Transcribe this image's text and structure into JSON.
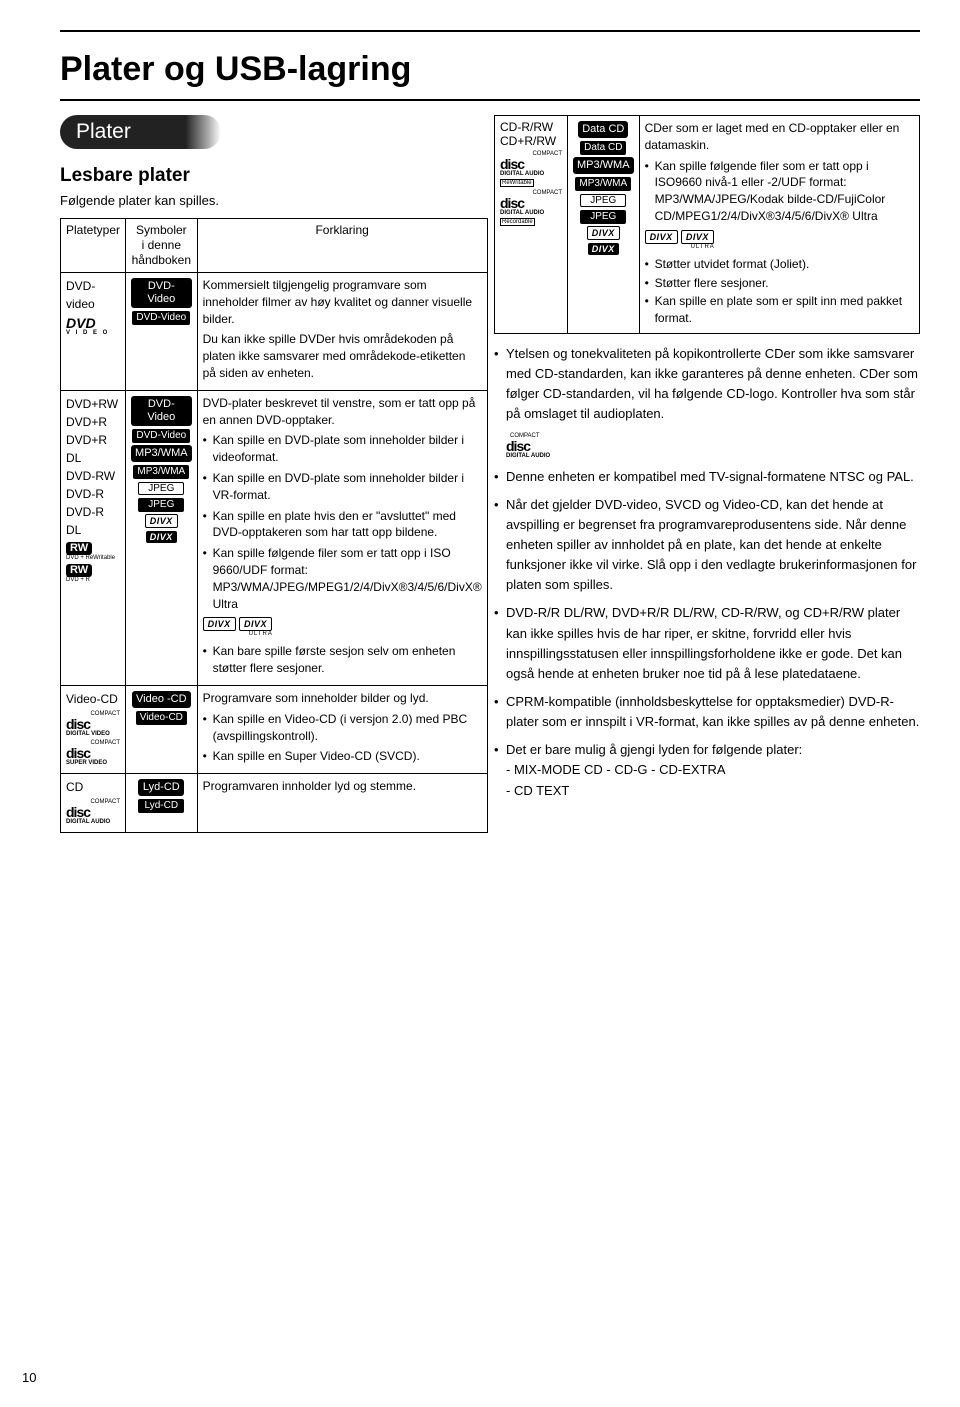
{
  "page": {
    "title": "Plater og USB-lagring",
    "section_pill": "Plater",
    "sub_heading": "Lesbare plater",
    "intro": "Følgende plater kan spilles.",
    "page_num": "10"
  },
  "left_table": {
    "headers": {
      "type": "Platetyper",
      "symbols": "Symboler\ni denne\nhåndboken",
      "desc": "Forklaring"
    },
    "rows": [
      {
        "type_lines": [
          "DVD-video"
        ],
        "type_logos": [
          "DVD-VIDEO-LOGO"
        ],
        "symbols": [
          {
            "style": "lg-pill",
            "text": "DVD-Video"
          },
          {
            "style": "pill",
            "text": "DVD-Video"
          }
        ],
        "desc_paras": [
          "Kommersielt tilgjengelig programvare som inneholder filmer av høy kvalitet og danner visuelle bilder.",
          "Du kan ikke spille DVDer hvis områdekoden på platen ikke samsvarer med områdekode-etiketten på siden av enheten."
        ],
        "desc_bullets": []
      },
      {
        "type_lines": [
          "DVD+RW",
          "DVD+R",
          "DVD+R DL",
          "DVD-RW",
          "DVD-R",
          "DVD-R DL"
        ],
        "type_logos": [
          "RW-REWRITABLE",
          "RW-R"
        ],
        "symbols": [
          {
            "style": "lg-pill",
            "text": "DVD-Video"
          },
          {
            "style": "pill",
            "text": "DVD-Video"
          },
          {
            "style": "lg-pill",
            "text": "MP3/WMA"
          },
          {
            "style": "pill",
            "text": "MP3/WMA"
          },
          {
            "style": "box",
            "text": "JPEG"
          },
          {
            "style": "pill",
            "text": "JPEG"
          },
          {
            "style": "divx-box",
            "text": "DIVX"
          },
          {
            "style": "divx-pill",
            "text": "DIVX"
          }
        ],
        "desc_paras": [
          "DVD-plater beskrevet til venstre, som er tatt opp på en annen DVD-opptaker."
        ],
        "desc_bullets": [
          "Kan spille en DVD-plate som inneholder bilder i videoformat.",
          "Kan spille en DVD-plate som inneholder bilder i VR-format.",
          "Kan spille en plate hvis den er \"avsluttet\" med DVD-opptakeren som har tatt opp bildene.",
          "Kan spille følgende filer som er tatt opp i ISO 9660/UDF format: MP3/WMA/JPEG/MPEG1/2/4/DivX®3/4/5/6/DivX® Ultra"
        ],
        "desc_trailing_bullets": [
          "Kan bare spille første sesjon selv om enheten støtter flere sesjoner."
        ],
        "show_divx_pair": true
      },
      {
        "type_lines": [
          "Video-CD"
        ],
        "type_logos": [
          "DISC-DIGITALVIDEO",
          "DISC-SUPERVIDEO"
        ],
        "symbols": [
          {
            "style": "lg-pill",
            "text": "Video -CD"
          },
          {
            "style": "pill",
            "text": "Video-CD"
          }
        ],
        "desc_paras": [
          "Programvare som inneholder bilder og lyd."
        ],
        "desc_bullets": [
          "Kan spille en Video-CD (i versjon 2.0) med PBC (avspillingskontroll).",
          "Kan spille en Super Video-CD (SVCD)."
        ]
      },
      {
        "type_lines": [
          "CD"
        ],
        "type_logos": [
          "DISC-DIGITALAUDIO"
        ],
        "symbols": [
          {
            "style": "lg-pill",
            "text": "Lyd-CD"
          },
          {
            "style": "pill",
            "text": "Lyd-CD"
          }
        ],
        "desc_paras": [
          "Programvaren innholder lyd og stemme."
        ],
        "desc_bullets": []
      }
    ]
  },
  "right_table": {
    "row": {
      "c1_lines": [
        "CD-R/RW",
        "CD+R/RW"
      ],
      "c1_logos": [
        "DISC-REWRITABLE",
        "DISC-RECORDABLE"
      ],
      "c2_symbols": [
        {
          "style": "lg-pill",
          "text": "Data CD"
        },
        {
          "style": "pill",
          "text": "Data CD"
        },
        {
          "style": "lg-pill",
          "text": "MP3/WMA"
        },
        {
          "style": "pill",
          "text": "MP3/WMA"
        },
        {
          "style": "box",
          "text": "JPEG"
        },
        {
          "style": "pill",
          "text": "JPEG"
        },
        {
          "style": "divx-box",
          "text": "DIVX"
        },
        {
          "style": "divx-pill",
          "text": "DIVX"
        }
      ],
      "c3_para": "CDer som er laget med en CD-opptaker eller en datamaskin.",
      "c3_bullets_top": [
        "Kan spille følgende filer som er tatt opp i ISO9660 nivå-1 eller -2/UDF format: MP3/WMA/JPEG/Kodak bilde-CD/FujiColor CD/MPEG1/2/4/DivX®3/4/5/6/DivX® Ultra"
      ],
      "c3_bullets_bottom": [
        "Støtter utvidet format (Joliet).",
        "Støtter flere sesjoner.",
        "Kan spille en plate som er spilt inn med pakket format."
      ],
      "show_divx_pair": true
    }
  },
  "right_bullets": [
    "Ytelsen og tonekvaliteten på kopikontrollerte CDer som ikke samsvarer med CD-standarden, kan ikke garanteres på denne enheten. CDer som følger CD-standarden, vil ha følgende CD-logo. Kontroller hva som står på omslaget til audioplaten.",
    "Denne enheten er kompatibel med TV-signal-formatene NTSC og PAL.",
    "Når det gjelder DVD-video, SVCD og Video-CD, kan det hende at avspilling er begrenset fra programvareprodusentens side. Når denne enheten spiller av innholdet på en plate, kan det hende at enkelte funksjoner ikke vil virke. Slå opp i den vedlagte brukerinformasjonen for platen som spilles.",
    "DVD-R/R DL/RW, DVD+R/R DL/RW, CD-R/RW, og CD+R/RW plater kan ikke spilles hvis de har riper, er skitne, forvridd eller hvis innspillingsstatusen eller innspillingsforholdene ikke er gode. Det kan også hende at enheten bruker noe tid på å lese platedataene.",
    "CPRM-kompatible (innholdsbeskyttelse for opptaksmedier) DVD-R-plater som er innspilt i VR-format, kan ikke spilles av på denne enheten.",
    "Det er bare mulig å gjengi lyden for følgende plater:\n- MIX-MODE CD   - CD-G   - CD-EXTRA\n- CD TEXT"
  ],
  "divx_labels": {
    "divx": "DIVX",
    "ultra": "ULTRA"
  },
  "disc_logo_texts": {
    "compact": "COMPACT",
    "disc": "disc",
    "digital_audio": "DIGITAL AUDIO"
  }
}
